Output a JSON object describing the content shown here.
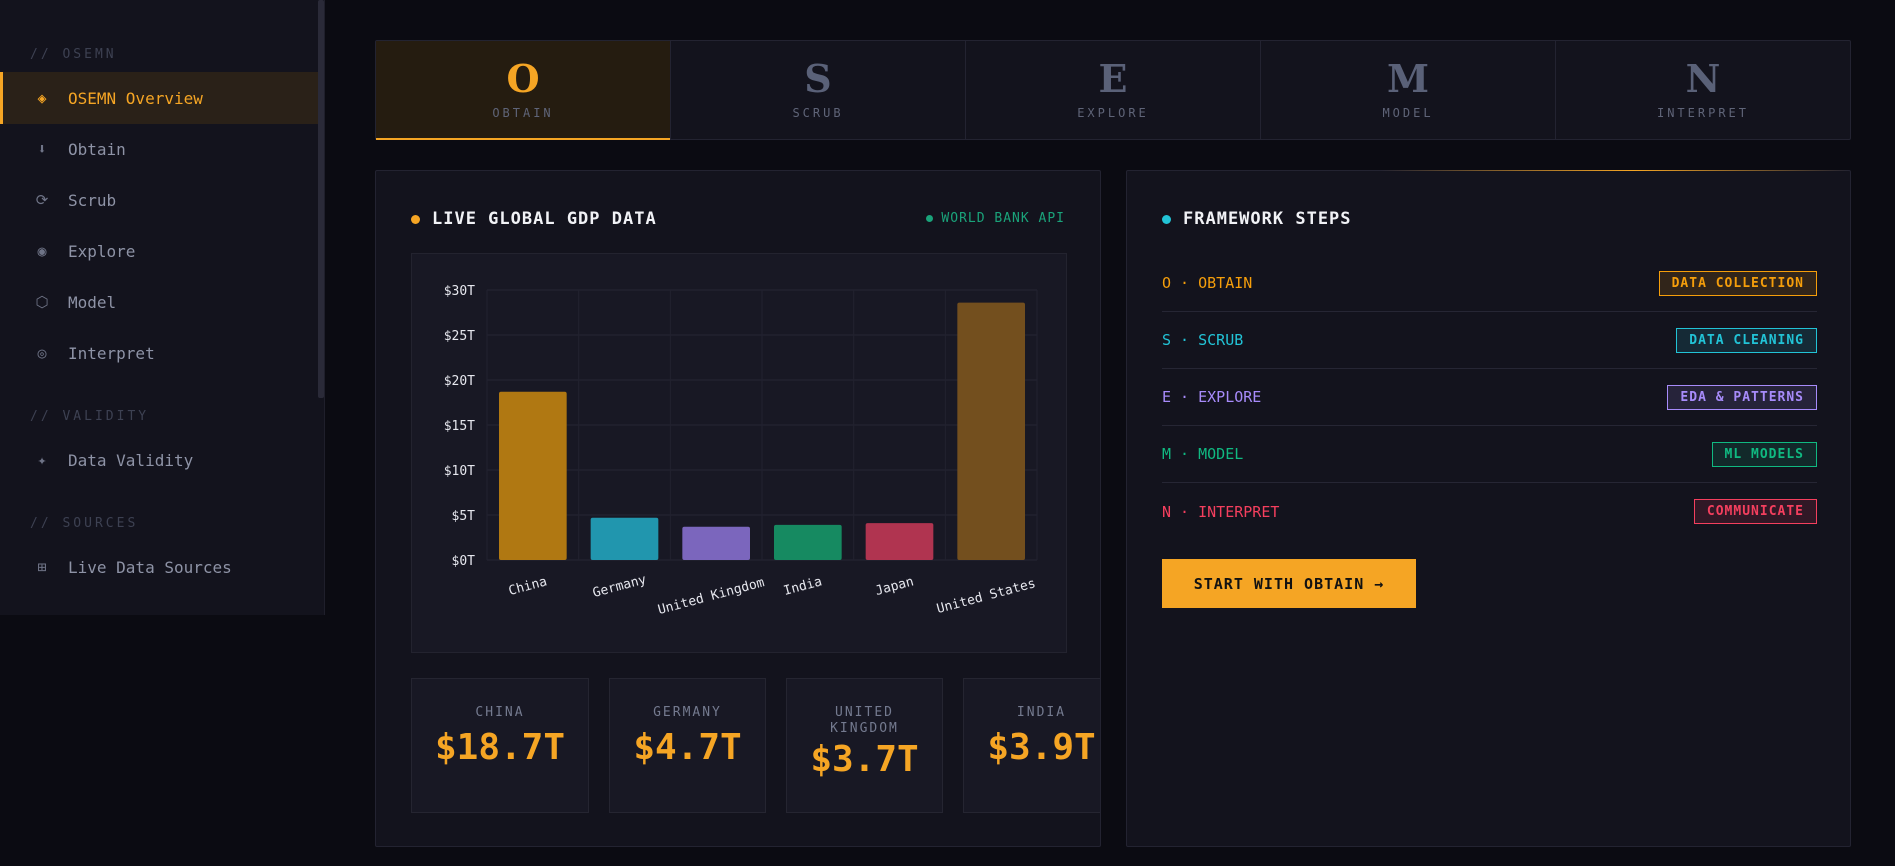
{
  "sidebar": {
    "sections": [
      {
        "label": "// OSEMN"
      },
      {
        "label": "// VALIDITY"
      },
      {
        "label": "// SOURCES"
      }
    ],
    "items": [
      {
        "label": "OSEMN Overview",
        "icon": "diamond-icon",
        "glyph": "◈"
      },
      {
        "label": "Obtain",
        "icon": "download-icon",
        "glyph": "⬇"
      },
      {
        "label": "Scrub",
        "icon": "refresh-icon",
        "glyph": "⟳"
      },
      {
        "label": "Explore",
        "icon": "radio-icon",
        "glyph": "◉"
      },
      {
        "label": "Model",
        "icon": "hexagon-icon",
        "glyph": "⬡"
      },
      {
        "label": "Interpret",
        "icon": "target-icon",
        "glyph": "◎"
      },
      {
        "label": "Data Validity",
        "icon": "sparkle-icon",
        "glyph": "✦"
      },
      {
        "label": "Live Data Sources",
        "icon": "grid-icon",
        "glyph": "⊞"
      }
    ]
  },
  "steps": [
    {
      "letter": "O",
      "word": "OBTAIN"
    },
    {
      "letter": "S",
      "word": "SCRUB"
    },
    {
      "letter": "E",
      "word": "EXPLORE"
    },
    {
      "letter": "M",
      "word": "MODEL"
    },
    {
      "letter": "N",
      "word": "INTERPRET"
    }
  ],
  "gdp_panel": {
    "title": "LIVE GLOBAL GDP DATA",
    "source": "WORLD BANK API",
    "stats": [
      {
        "label": "CHINA",
        "value": "$18.7T"
      },
      {
        "label": "GERMANY",
        "value": "$4.7T"
      },
      {
        "label": "UNITED KINGDOM",
        "value": "$3.7T"
      },
      {
        "label": "INDIA",
        "value": "$3.9T"
      }
    ]
  },
  "chart_data": {
    "type": "bar",
    "title": "",
    "xlabel": "",
    "ylabel": "",
    "categories": [
      "China",
      "Germany",
      "United Kingdom",
      "India",
      "Japan",
      "United States"
    ],
    "values": [
      18.7,
      4.7,
      3.7,
      3.9,
      4.1,
      28.6
    ],
    "colors": [
      "#b07812",
      "#2196ae",
      "#7b66bd",
      "#168a61",
      "#b03450",
      "#734f1e"
    ],
    "yticks": [
      "$0T",
      "$5T",
      "$10T",
      "$15T",
      "$20T",
      "$25T",
      "$30T"
    ],
    "ylim": [
      0,
      30
    ],
    "grid": true
  },
  "framework": {
    "title": "FRAMEWORK STEPS",
    "rows": [
      {
        "label": "O · OBTAIN",
        "badge": "DATA COLLECTION",
        "color": "#f59e0b"
      },
      {
        "label": "S · SCRUB",
        "badge": "DATA CLEANING",
        "color": "#22c3d6"
      },
      {
        "label": "E · EXPLORE",
        "badge": "EDA & PATTERNS",
        "color": "#a78bfa"
      },
      {
        "label": "M · MODEL",
        "badge": "ML MODELS",
        "color": "#10b981"
      },
      {
        "label": "N · INTERPRET",
        "badge": "COMMUNICATE",
        "color": "#f43f5e"
      }
    ],
    "button": "START WITH OBTAIN →"
  },
  "colors": {
    "accent": "#f5a524",
    "cyan": "#22c3d6",
    "green": "#1aa37a"
  }
}
